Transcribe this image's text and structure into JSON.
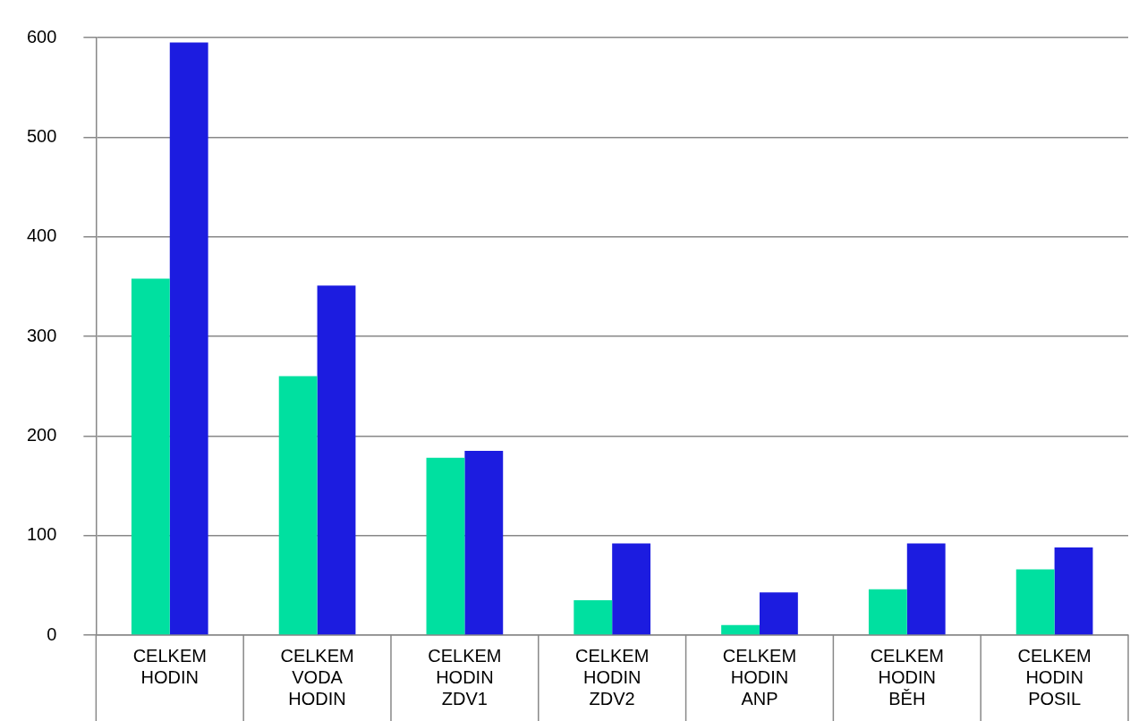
{
  "chart_data": {
    "type": "bar",
    "categories": [
      "CELKEM HODIN",
      "CELKEM VODA HODIN",
      "CELKEM HODIN ZDV1",
      "CELKEM HODIN ZDV2",
      "CELKEM HODIN ANP",
      "CELKEM HODIN BĚH",
      "CELKEM HODIN POSIL"
    ],
    "series": [
      {
        "color": "#00e0a0",
        "values": [
          358,
          260,
          178,
          35,
          10,
          46,
          66
        ]
      },
      {
        "color": "#1c1ce0",
        "values": [
          595,
          351,
          185,
          92,
          43,
          92,
          88
        ]
      }
    ],
    "ylim": [
      0,
      600
    ],
    "yticks": [
      0,
      100,
      200,
      300,
      400,
      500,
      600
    ],
    "grid": "y",
    "legend": false
  }
}
